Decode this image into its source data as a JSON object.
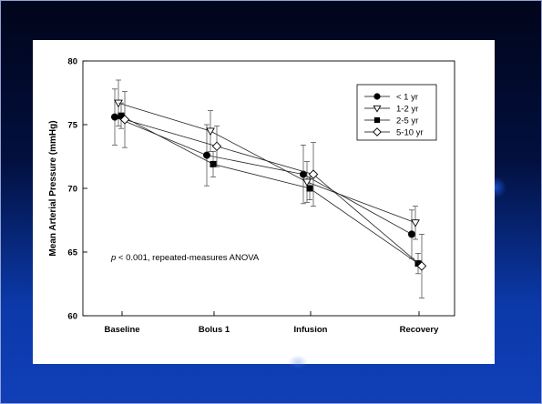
{
  "chart_data": {
    "type": "line",
    "title": "",
    "xlabel": "",
    "ylabel": "Mean Arterial Pressure (mmHg)",
    "categories": [
      "Baseline",
      "Bolus 1",
      "Infusion",
      "Recovery"
    ],
    "ylim": [
      60,
      80
    ],
    "yticks": [
      60,
      65,
      70,
      75,
      80
    ],
    "grid": false,
    "legend_position": "top-right",
    "annotation": "p < 0.001, repeated-measures ANOVA",
    "annotation_italic": "p",
    "annotation_rest": " < 0.001, repeated-measures ANOVA",
    "series": [
      {
        "name": "< 1 yr",
        "marker": "filled-circle",
        "values": [
          75.6,
          72.6,
          71.1,
          66.4
        ],
        "err": [
          2.2,
          2.4,
          2.3,
          1.9
        ]
      },
      {
        "name": "1-2 yr",
        "marker": "open-triangle-down",
        "values": [
          76.7,
          74.5,
          70.5,
          67.3
        ],
        "err": [
          1.8,
          1.6,
          1.6,
          1.3
        ]
      },
      {
        "name": "2-5 yr",
        "marker": "filled-square",
        "values": [
          75.7,
          71.9,
          70.0,
          64.1
        ],
        "err": [
          1.0,
          1.0,
          0.9,
          0.8
        ]
      },
      {
        "name": "5-10 yr",
        "marker": "open-diamond",
        "values": [
          75.4,
          73.3,
          71.1,
          63.9
        ],
        "err": [
          2.2,
          1.6,
          2.5,
          2.5
        ]
      }
    ]
  }
}
